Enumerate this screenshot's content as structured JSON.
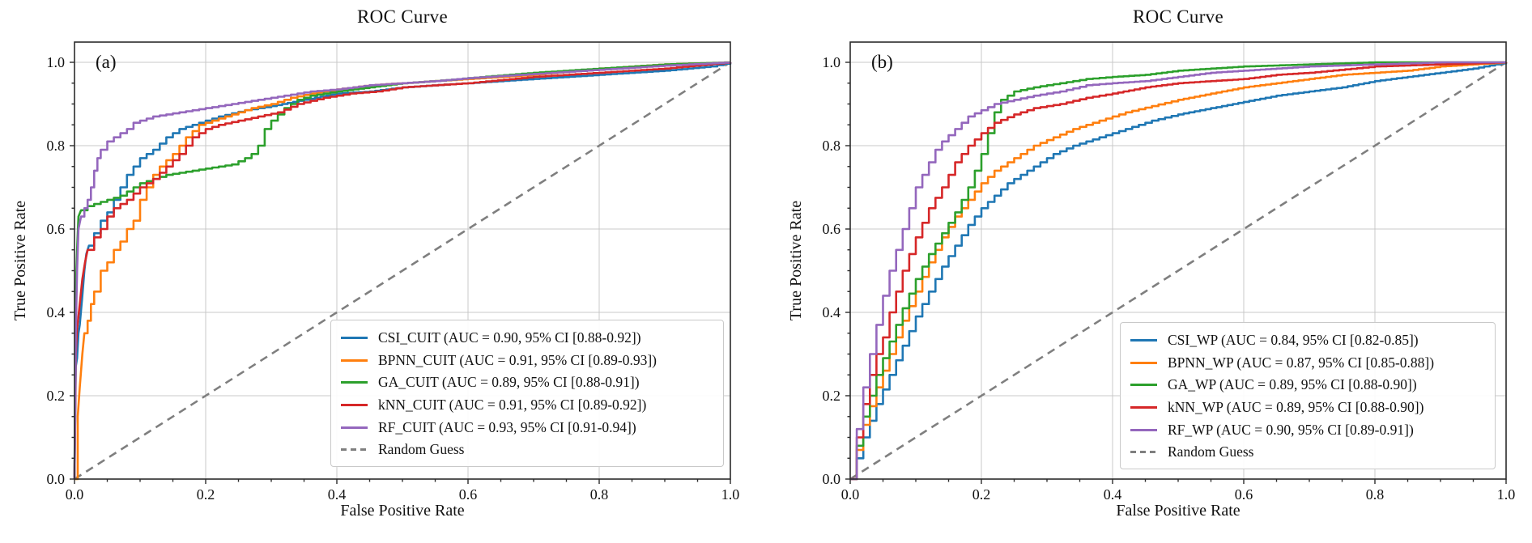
{
  "figure_background": "#ffffff",
  "grid_color": "#c8c8c8",
  "axis_color": "#2b2b2b",
  "chart_data": [
    {
      "type": "line",
      "title": "ROC Curve",
      "panel_label": "(a)",
      "xlabel": "False Positive Rate",
      "ylabel": "True Positive Rate",
      "xlim": [
        0.0,
        1.0
      ],
      "ylim": [
        0.0,
        1.05
      ],
      "grid": true,
      "legend_position": "lower right",
      "xticks": [
        0.0,
        0.2,
        0.4,
        0.6,
        0.8,
        1.0
      ],
      "yticks": [
        0.0,
        0.2,
        0.4,
        0.6,
        0.8,
        1.0
      ],
      "xtick_labels": [
        "0.0",
        "0.2",
        "0.4",
        "0.6",
        "0.8",
        "1.0"
      ],
      "ytick_labels": [
        "0.0",
        "0.2",
        "0.4",
        "0.6",
        "0.8",
        "1.0"
      ],
      "series": [
        {
          "name": "CSI_CUIT",
          "label": "CSI_CUIT (AUC = 0.90, 95% CI [0.88-0.92])",
          "auc": "0.90",
          "ci": "0.88-0.92",
          "color": "#1f77b4",
          "dashed": false,
          "x": [
            0,
            0.002,
            0.004,
            0.006,
            0.008,
            0.012,
            0.015,
            0.018,
            0.022,
            0.03,
            0.04,
            0.05,
            0.06,
            0.07,
            0.08,
            0.09,
            0.1,
            0.12,
            0.14,
            0.16,
            0.18,
            0.22,
            0.26,
            0.3,
            0.35,
            0.4,
            0.45,
            0.5,
            0.6,
            0.7,
            0.8,
            0.9,
            0.97,
            1.0
          ],
          "y": [
            0,
            0.27,
            0.29,
            0.35,
            0.37,
            0.44,
            0.5,
            0.54,
            0.56,
            0.59,
            0.62,
            0.64,
            0.67,
            0.7,
            0.73,
            0.75,
            0.77,
            0.79,
            0.82,
            0.84,
            0.85,
            0.87,
            0.885,
            0.895,
            0.91,
            0.925,
            0.93,
            0.94,
            0.95,
            0.96,
            0.97,
            0.98,
            0.99,
            1.0
          ]
        },
        {
          "name": "BPNN_CUIT",
          "label": "BPNN_CUIT (AUC = 0.91, 95% CI [0.89-0.93])",
          "auc": "0.91",
          "ci": "0.89-0.93",
          "color": "#ff7f0e",
          "dashed": false,
          "x": [
            0,
            0.005,
            0.008,
            0.012,
            0.015,
            0.02,
            0.025,
            0.03,
            0.04,
            0.05,
            0.06,
            0.07,
            0.08,
            0.09,
            0.1,
            0.11,
            0.12,
            0.13,
            0.15,
            0.17,
            0.19,
            0.21,
            0.24,
            0.27,
            0.3,
            0.33,
            0.36,
            0.4,
            0.45,
            0.5,
            0.55,
            0.6,
            0.7,
            0.8,
            0.9,
            1.0
          ],
          "y": [
            0,
            0.15,
            0.22,
            0.3,
            0.35,
            0.38,
            0.42,
            0.45,
            0.5,
            0.52,
            0.55,
            0.57,
            0.6,
            0.62,
            0.67,
            0.7,
            0.73,
            0.75,
            0.78,
            0.82,
            0.85,
            0.86,
            0.875,
            0.89,
            0.9,
            0.915,
            0.925,
            0.935,
            0.945,
            0.95,
            0.955,
            0.96,
            0.97,
            0.985,
            0.995,
            1.0
          ]
        },
        {
          "name": "GA_CUIT",
          "label": "GA_CUIT (AUC = 0.89, 95% CI [0.88-0.91])",
          "auc": "0.89",
          "ci": "0.88-0.91",
          "color": "#2ca02c",
          "dashed": false,
          "x": [
            0,
            0.002,
            0.004,
            0.006,
            0.01,
            0.02,
            0.03,
            0.05,
            0.07,
            0.08,
            0.09,
            0.1,
            0.12,
            0.14,
            0.16,
            0.18,
            0.2,
            0.22,
            0.24,
            0.26,
            0.27,
            0.28,
            0.29,
            0.3,
            0.32,
            0.34,
            0.36,
            0.4,
            0.45,
            0.5,
            0.55,
            0.6,
            0.7,
            0.8,
            0.9,
            1.0
          ],
          "y": [
            0,
            0.45,
            0.55,
            0.63,
            0.645,
            0.655,
            0.66,
            0.67,
            0.68,
            0.69,
            0.7,
            0.71,
            0.72,
            0.73,
            0.735,
            0.74,
            0.745,
            0.75,
            0.755,
            0.77,
            0.78,
            0.8,
            0.84,
            0.86,
            0.89,
            0.91,
            0.92,
            0.93,
            0.94,
            0.95,
            0.955,
            0.962,
            0.975,
            0.985,
            0.995,
            1.0
          ]
        },
        {
          "name": "kNN_CUIT",
          "label": "kNN_CUIT (AUC = 0.91, 95% CI [0.89-0.92])",
          "auc": "0.91",
          "ci": "0.89-0.92",
          "color": "#d62728",
          "dashed": false,
          "x": [
            0,
            0.002,
            0.004,
            0.008,
            0.012,
            0.016,
            0.02,
            0.03,
            0.04,
            0.05,
            0.06,
            0.08,
            0.1,
            0.12,
            0.14,
            0.16,
            0.18,
            0.2,
            0.22,
            0.25,
            0.28,
            0.31,
            0.34,
            0.38,
            0.42,
            0.46,
            0.5,
            0.6,
            0.7,
            0.8,
            0.9,
            1.0
          ],
          "y": [
            0,
            0.3,
            0.36,
            0.42,
            0.48,
            0.52,
            0.55,
            0.58,
            0.6,
            0.63,
            0.65,
            0.67,
            0.7,
            0.72,
            0.75,
            0.78,
            0.82,
            0.84,
            0.85,
            0.86,
            0.87,
            0.88,
            0.9,
            0.915,
            0.925,
            0.93,
            0.94,
            0.95,
            0.965,
            0.975,
            0.985,
            1.0
          ]
        },
        {
          "name": "RF_CUIT",
          "label": "RF_CUIT (AUC = 0.93, 95% CI [0.91-0.94])",
          "auc": "0.93",
          "ci": "0.91-0.94",
          "color": "#9467bd",
          "dashed": false,
          "x": [
            0,
            0.002,
            0.004,
            0.006,
            0.01,
            0.015,
            0.02,
            0.025,
            0.03,
            0.035,
            0.04,
            0.05,
            0.06,
            0.07,
            0.08,
            0.09,
            0.1,
            0.12,
            0.14,
            0.16,
            0.18,
            0.2,
            0.24,
            0.28,
            0.32,
            0.36,
            0.4,
            0.45,
            0.5,
            0.55,
            0.6,
            0.7,
            0.8,
            0.9,
            1.0
          ],
          "y": [
            0,
            0.35,
            0.5,
            0.6,
            0.63,
            0.65,
            0.67,
            0.7,
            0.74,
            0.77,
            0.79,
            0.81,
            0.82,
            0.83,
            0.84,
            0.855,
            0.86,
            0.87,
            0.875,
            0.88,
            0.885,
            0.89,
            0.9,
            0.91,
            0.92,
            0.93,
            0.935,
            0.945,
            0.95,
            0.955,
            0.962,
            0.972,
            0.982,
            0.992,
            1.0
          ]
        },
        {
          "name": "Random Guess",
          "label": "Random Guess",
          "color": "#7f7f7f",
          "dashed": true,
          "x": [
            0,
            1
          ],
          "y": [
            0,
            1
          ]
        }
      ]
    },
    {
      "type": "line",
      "title": "ROC Curve",
      "panel_label": "(b)",
      "xlabel": "False Positive Rate",
      "ylabel": "True Positive Rate",
      "xlim": [
        0.0,
        1.0
      ],
      "ylim": [
        0.0,
        1.05
      ],
      "grid": true,
      "legend_position": "lower right",
      "xticks": [
        0.0,
        0.2,
        0.4,
        0.6,
        0.8,
        1.0
      ],
      "yticks": [
        0.0,
        0.2,
        0.4,
        0.6,
        0.8,
        1.0
      ],
      "xtick_labels": [
        "0.0",
        "0.2",
        "0.4",
        "0.6",
        "0.8",
        "1.0"
      ],
      "ytick_labels": [
        "0.0",
        "0.2",
        "0.4",
        "0.6",
        "0.8",
        "1.0"
      ],
      "series": [
        {
          "name": "CSI_WP",
          "label": "CSI_WP (AUC = 0.84, 95% CI [0.82-0.85])",
          "auc": "0.84",
          "ci": "0.82-0.85",
          "color": "#1f77b4",
          "dashed": false,
          "x": [
            0,
            0.01,
            0.02,
            0.04,
            0.06,
            0.08,
            0.1,
            0.12,
            0.14,
            0.16,
            0.18,
            0.2,
            0.22,
            0.24,
            0.26,
            0.28,
            0.31,
            0.34,
            0.38,
            0.42,
            0.46,
            0.5,
            0.55,
            0.6,
            0.65,
            0.7,
            0.75,
            0.8,
            0.85,
            0.9,
            0.95,
            1.0
          ],
          "y": [
            0,
            0.05,
            0.1,
            0.18,
            0.25,
            0.32,
            0.39,
            0.45,
            0.51,
            0.56,
            0.61,
            0.65,
            0.68,
            0.71,
            0.73,
            0.75,
            0.78,
            0.8,
            0.82,
            0.84,
            0.86,
            0.875,
            0.89,
            0.905,
            0.92,
            0.93,
            0.94,
            0.955,
            0.965,
            0.975,
            0.985,
            1.0
          ]
        },
        {
          "name": "BPNN_WP",
          "label": "BPNN_WP (AUC = 0.87, 95% CI [0.85-0.88])",
          "auc": "0.87",
          "ci": "0.85-0.88",
          "color": "#ff7f0e",
          "dashed": false,
          "x": [
            0,
            0.01,
            0.02,
            0.04,
            0.06,
            0.08,
            0.1,
            0.12,
            0.14,
            0.16,
            0.18,
            0.2,
            0.22,
            0.25,
            0.28,
            0.31,
            0.34,
            0.38,
            0.42,
            0.46,
            0.5,
            0.55,
            0.6,
            0.65,
            0.7,
            0.75,
            0.8,
            0.85,
            0.9,
            0.95,
            1.0
          ],
          "y": [
            0,
            0.07,
            0.13,
            0.22,
            0.3,
            0.38,
            0.45,
            0.52,
            0.58,
            0.63,
            0.67,
            0.71,
            0.74,
            0.77,
            0.8,
            0.82,
            0.84,
            0.86,
            0.88,
            0.895,
            0.91,
            0.925,
            0.94,
            0.95,
            0.96,
            0.97,
            0.975,
            0.98,
            0.99,
            0.995,
            1.0
          ]
        },
        {
          "name": "GA_WP",
          "label": "GA_WP (AUC = 0.89, 95% CI [0.88-0.90])",
          "auc": "0.89",
          "ci": "0.88-0.90",
          "color": "#2ca02c",
          "dashed": false,
          "x": [
            0,
            0.01,
            0.02,
            0.04,
            0.06,
            0.08,
            0.1,
            0.12,
            0.14,
            0.16,
            0.18,
            0.19,
            0.2,
            0.21,
            0.22,
            0.23,
            0.25,
            0.28,
            0.32,
            0.36,
            0.4,
            0.45,
            0.5,
            0.55,
            0.6,
            0.7,
            0.8,
            0.9,
            1.0
          ],
          "y": [
            0,
            0.08,
            0.15,
            0.25,
            0.33,
            0.41,
            0.48,
            0.54,
            0.59,
            0.64,
            0.7,
            0.74,
            0.78,
            0.83,
            0.88,
            0.91,
            0.93,
            0.94,
            0.95,
            0.96,
            0.965,
            0.97,
            0.98,
            0.985,
            0.99,
            0.995,
            1.0,
            1.0,
            1.0
          ]
        },
        {
          "name": "kNN_WP",
          "label": "kNN_WP (AUC = 0.89, 95% CI [0.88-0.90])",
          "auc": "0.89",
          "ci": "0.88-0.90",
          "color": "#d62728",
          "dashed": false,
          "x": [
            0,
            0.01,
            0.02,
            0.03,
            0.04,
            0.05,
            0.06,
            0.08,
            0.1,
            0.12,
            0.14,
            0.16,
            0.18,
            0.2,
            0.22,
            0.25,
            0.28,
            0.32,
            0.36,
            0.4,
            0.45,
            0.5,
            0.55,
            0.6,
            0.65,
            0.7,
            0.8,
            0.9,
            1.0
          ],
          "y": [
            0,
            0.1,
            0.18,
            0.25,
            0.3,
            0.34,
            0.4,
            0.5,
            0.58,
            0.65,
            0.7,
            0.76,
            0.8,
            0.83,
            0.855,
            0.875,
            0.89,
            0.9,
            0.915,
            0.925,
            0.94,
            0.95,
            0.955,
            0.96,
            0.97,
            0.975,
            0.99,
            0.995,
            1.0
          ]
        },
        {
          "name": "RF_WP",
          "label": "RF_WP (AUC = 0.90, 95% CI [0.89-0.91])",
          "auc": "0.90",
          "ci": "0.89-0.91",
          "color": "#9467bd",
          "dashed": false,
          "x": [
            0,
            0.01,
            0.02,
            0.03,
            0.04,
            0.05,
            0.06,
            0.07,
            0.08,
            0.09,
            0.1,
            0.11,
            0.12,
            0.13,
            0.14,
            0.16,
            0.18,
            0.2,
            0.22,
            0.25,
            0.28,
            0.32,
            0.36,
            0.4,
            0.45,
            0.5,
            0.55,
            0.6,
            0.65,
            0.7,
            0.8,
            0.9,
            1.0
          ],
          "y": [
            0,
            0.12,
            0.22,
            0.3,
            0.37,
            0.44,
            0.5,
            0.55,
            0.6,
            0.65,
            0.7,
            0.73,
            0.76,
            0.79,
            0.81,
            0.84,
            0.87,
            0.885,
            0.9,
            0.91,
            0.92,
            0.93,
            0.945,
            0.95,
            0.955,
            0.965,
            0.975,
            0.98,
            0.985,
            0.99,
            0.995,
            1.0,
            1.0
          ]
        },
        {
          "name": "Random Guess",
          "label": "Random Guess",
          "color": "#7f7f7f",
          "dashed": true,
          "x": [
            0,
            1
          ],
          "y": [
            0,
            1
          ]
        }
      ]
    }
  ]
}
